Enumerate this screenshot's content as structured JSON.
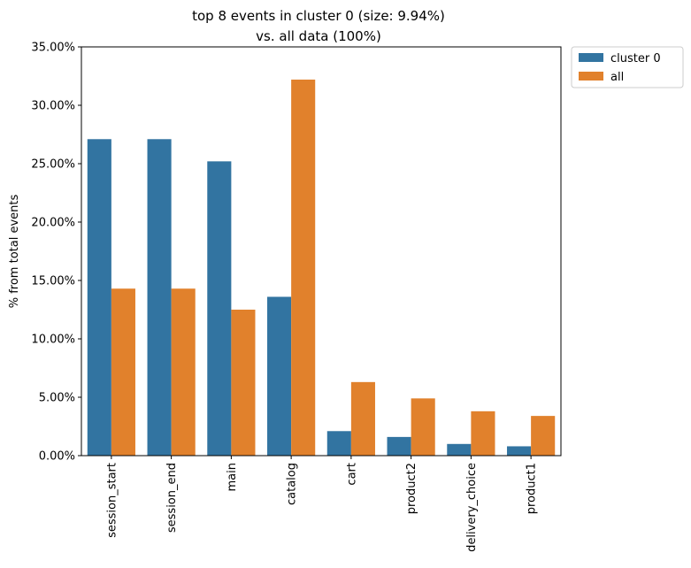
{
  "chart_data": {
    "type": "bar",
    "title": "top 8 events in cluster 0 (size: 9.94%)",
    "subtitle": "vs. all data (100%)",
    "xlabel": "",
    "ylabel": "% from total events",
    "ylim": [
      0,
      35
    ],
    "y_ticks": [
      "0.00%",
      "5.00%",
      "10.00%",
      "15.00%",
      "20.00%",
      "25.00%",
      "30.00%",
      "35.00%"
    ],
    "categories": [
      "session_start",
      "session_end",
      "main",
      "catalog",
      "cart",
      "product2",
      "delivery_choice",
      "product1"
    ],
    "series": [
      {
        "name": "cluster 0",
        "color": "#3274a1",
        "values": [
          27.1,
          27.1,
          25.2,
          13.6,
          2.1,
          1.6,
          1.0,
          0.8
        ]
      },
      {
        "name": "all",
        "color": "#e1812c",
        "values": [
          14.3,
          14.3,
          12.5,
          32.2,
          6.3,
          4.9,
          3.8,
          3.4
        ]
      }
    ],
    "grid": false,
    "legend": "outside-top-right"
  }
}
